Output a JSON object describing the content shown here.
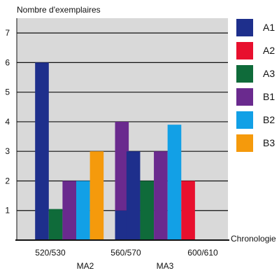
{
  "chart_data": {
    "type": "bar",
    "title": "",
    "ylabel": "Nombre d'exemplaires",
    "xlabel": "Chronologie",
    "ylim": [
      0,
      7.5
    ],
    "yticks": [
      1,
      2,
      3,
      4,
      5,
      6,
      7
    ],
    "grid": true,
    "legend_position": "right",
    "periods": [
      {
        "label": "520/530"
      },
      {
        "label": "560/570"
      },
      {
        "label": "600/610"
      }
    ],
    "phases": [
      {
        "label": "MA2"
      },
      {
        "label": "MA3"
      }
    ],
    "series": [
      {
        "name": "A1",
        "color": "#1e2f8c"
      },
      {
        "name": "A2",
        "color": "#e8102e"
      },
      {
        "name": "A3",
        "color": "#0f6b3a"
      },
      {
        "name": "B1",
        "color": "#6a2a8e"
      },
      {
        "name": "B2",
        "color": "#12a0e6"
      },
      {
        "name": "B3",
        "color": "#f59a0c"
      }
    ],
    "bars": [
      {
        "series": "A1",
        "value": 6,
        "position": 0.9
      },
      {
        "series": "A3",
        "value": 1.05,
        "position": 1.38
      },
      {
        "series": "B1",
        "value": 2,
        "position": 1.86
      },
      {
        "series": "B2",
        "value": 2,
        "position": 2.34
      },
      {
        "series": "B3",
        "value": 3,
        "position": 2.82
      },
      {
        "series": "A1",
        "value": 1,
        "position": 3.7
      },
      {
        "series": "B1",
        "value": 4,
        "position": 3.7,
        "base": 1
      },
      {
        "series": "A1",
        "value": 3,
        "position": 4.1
      },
      {
        "series": "A3",
        "value": 2,
        "position": 4.58
      },
      {
        "series": "B1",
        "value": 3,
        "position": 5.06
      },
      {
        "series": "B2",
        "value": 3.9,
        "position": 5.54
      },
      {
        "series": "A2",
        "value": 2,
        "position": 6.02
      }
    ]
  }
}
